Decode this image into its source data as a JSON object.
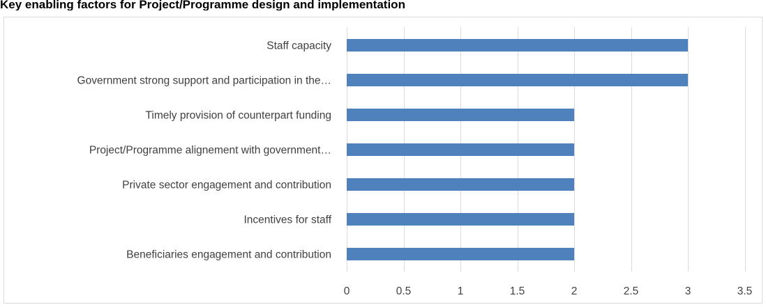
{
  "page": {
    "title": "Key enabling factors for Project/Programme design and implementation"
  },
  "chart_data": {
    "type": "bar",
    "orientation": "horizontal",
    "title": "",
    "xlabel": "",
    "ylabel": "",
    "categories": [
      "Staff capacity",
      "Government strong support and participation in the…",
      "Timely provision of counterpart funding",
      "Project/Programme alignement with government…",
      "Private sector engagement and contribution",
      "Incentives for staff",
      "Beneficiaries engagement and contribution"
    ],
    "values": [
      3,
      3,
      2,
      2,
      2,
      2,
      2
    ],
    "xlim": [
      0,
      3.5
    ],
    "ticks": [
      0,
      0.5,
      1,
      1.5,
      2,
      2.5,
      3,
      3.5
    ],
    "tick_labels": [
      "0",
      "0.5",
      "1",
      "1.5",
      "2",
      "2.5",
      "3",
      "3.5"
    ],
    "grid": "vertical",
    "legend": "none",
    "bar_color": "#4f81bd",
    "grid_color": "#d9d9d9"
  }
}
